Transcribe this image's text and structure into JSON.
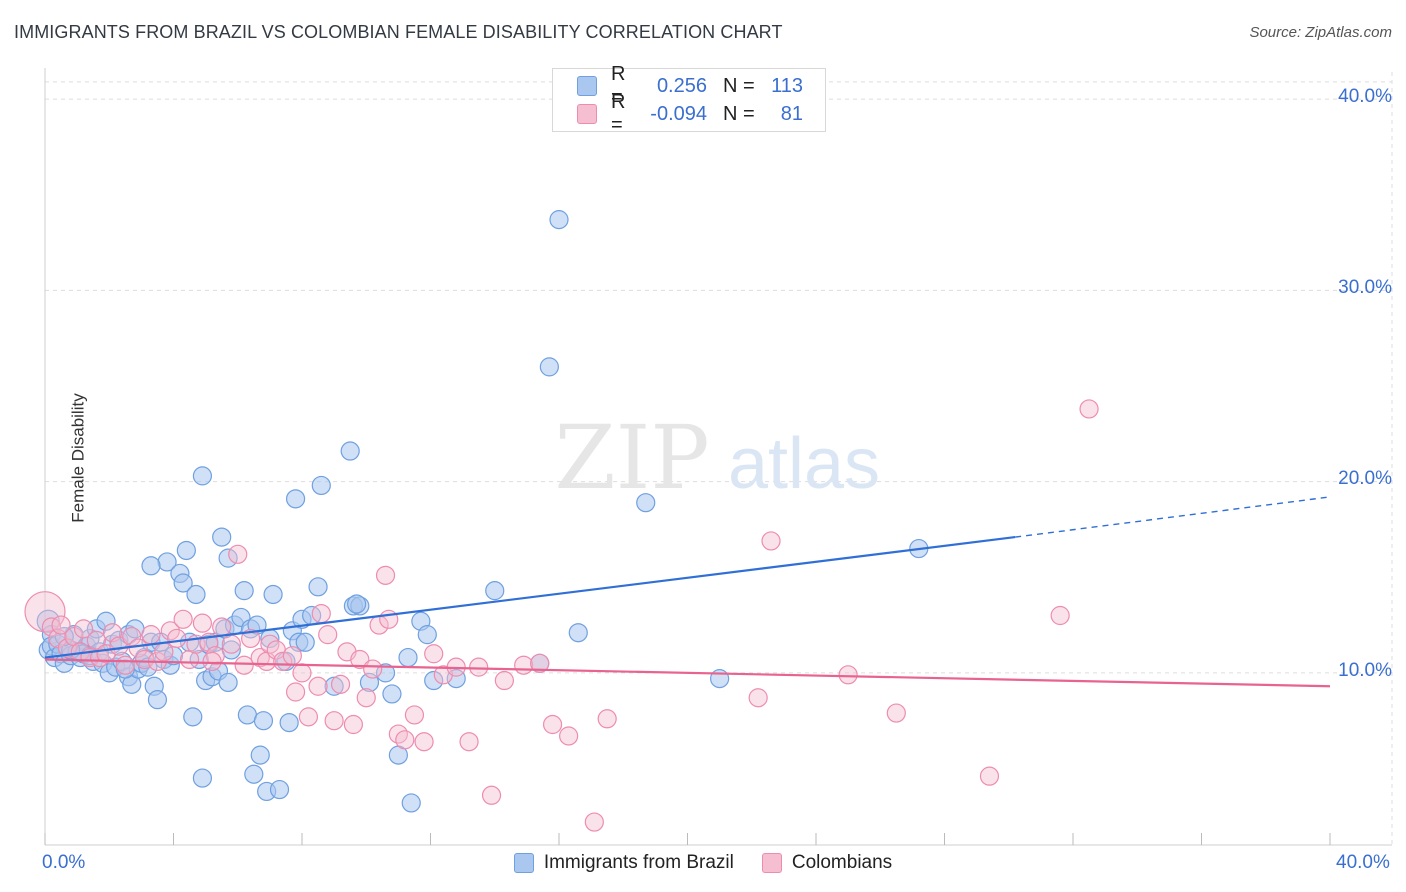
{
  "header": {
    "title": "IMMIGRANTS FROM BRAZIL VS COLOMBIAN FEMALE DISABILITY CORRELATION CHART",
    "source": "Source: ZipAtlas.com"
  },
  "watermark": {
    "zip": "ZIP",
    "atlas": "atlas"
  },
  "legend_stats": [
    {
      "r_label": "R =",
      "r_value": "0.256",
      "n_label": "N =",
      "n_value": "113",
      "color": "#6fa0e0"
    },
    {
      "r_label": "R =",
      "r_value": "-0.094",
      "n_label": "N =",
      "n_value": "81",
      "color": "#f08cb0"
    }
  ],
  "colors": {
    "blue_fill": "#a9c7ef",
    "blue_stroke": "#6fa0e0",
    "blue_line": "#2f6fd6",
    "pink_fill": "#f5bfd1",
    "pink_stroke": "#ee8cb0",
    "pink_line": "#e8638f",
    "grid": "#dddddd",
    "axis_text": "#3a6fd0"
  },
  "chart_data": {
    "type": "scatter",
    "title": "IMMIGRANTS FROM BRAZIL VS COLOMBIAN FEMALE DISABILITY CORRELATION CHART",
    "xlabel": "",
    "ylabel": "Female Disability",
    "xlim": [
      0,
      40
    ],
    "ylim": [
      1,
      41
    ],
    "x_tick_labels": [
      "0.0%",
      "40.0%"
    ],
    "y_ticks": [
      10,
      20,
      30,
      40
    ],
    "y_tick_labels": [
      "10.0%",
      "20.0%",
      "30.0%",
      "40.0%"
    ],
    "grid": true,
    "legend": "bottom-center",
    "series": [
      {
        "name": "Immigrants from Brazil",
        "color": "#6fa0e0",
        "trend": {
          "x0": 0,
          "y0": 10.8,
          "x1": 30.2,
          "y1": 17.1,
          "dashed_to_x": 40,
          "dashed_to_y": 19.2
        },
        "points": [
          [
            0.1,
            12.7
          ],
          [
            0.1,
            11.2
          ],
          [
            0.2,
            12.0
          ],
          [
            0.2,
            11.4
          ],
          [
            0.3,
            10.8
          ],
          [
            0.4,
            11.5
          ],
          [
            0.5,
            11.0
          ],
          [
            0.6,
            10.5
          ],
          [
            0.7,
            11.3
          ],
          [
            0.8,
            10.9
          ],
          [
            0.9,
            12.0
          ],
          [
            1.0,
            11.1
          ],
          [
            1.1,
            10.8
          ],
          [
            1.2,
            11.0
          ],
          [
            1.3,
            11.4
          ],
          [
            1.4,
            11.8
          ],
          [
            1.5,
            10.6
          ],
          [
            1.6,
            12.3
          ],
          [
            1.7,
            11.1
          ],
          [
            1.8,
            10.5
          ],
          [
            1.9,
            12.7
          ],
          [
            2.0,
            10.0
          ],
          [
            2.1,
            11.5
          ],
          [
            2.2,
            10.3
          ],
          [
            2.3,
            11.7
          ],
          [
            2.4,
            10.6
          ],
          [
            2.6,
            9.8
          ],
          [
            2.6,
            12.0
          ],
          [
            2.7,
            9.4
          ],
          [
            2.8,
            12.3
          ],
          [
            2.9,
            10.2
          ],
          [
            3.0,
            10.5
          ],
          [
            3.1,
            10.8
          ],
          [
            3.2,
            10.3
          ],
          [
            3.3,
            11.6
          ],
          [
            3.4,
            9.3
          ],
          [
            3.5,
            8.6
          ],
          [
            3.6,
            11.6
          ],
          [
            3.7,
            10.7
          ],
          [
            3.8,
            15.8
          ],
          [
            3.9,
            10.4
          ],
          [
            4.0,
            10.9
          ],
          [
            4.2,
            15.2
          ],
          [
            4.3,
            14.7
          ],
          [
            4.4,
            16.4
          ],
          [
            4.5,
            11.6
          ],
          [
            4.6,
            7.7
          ],
          [
            4.7,
            14.1
          ],
          [
            4.8,
            10.7
          ],
          [
            4.9,
            4.5
          ],
          [
            4.9,
            20.3
          ],
          [
            5.0,
            9.6
          ],
          [
            5.1,
            11.5
          ],
          [
            5.2,
            9.8
          ],
          [
            5.3,
            11.6
          ],
          [
            5.4,
            10.1
          ],
          [
            5.5,
            17.1
          ],
          [
            5.6,
            12.3
          ],
          [
            5.7,
            16.0
          ],
          [
            5.8,
            11.2
          ],
          [
            5.9,
            12.5
          ],
          [
            6.1,
            12.9
          ],
          [
            6.2,
            14.3
          ],
          [
            6.3,
            7.8
          ],
          [
            6.4,
            12.3
          ],
          [
            6.5,
            4.7
          ],
          [
            6.6,
            12.5
          ],
          [
            6.7,
            5.7
          ],
          [
            6.8,
            7.5
          ],
          [
            6.9,
            3.8
          ],
          [
            7.0,
            11.8
          ],
          [
            7.1,
            14.1
          ],
          [
            7.3,
            3.9
          ],
          [
            7.5,
            10.6
          ],
          [
            7.6,
            7.4
          ],
          [
            7.7,
            12.2
          ],
          [
            7.8,
            19.1
          ],
          [
            7.9,
            11.6
          ],
          [
            8.0,
            12.8
          ],
          [
            8.1,
            11.6
          ],
          [
            8.3,
            13.0
          ],
          [
            8.5,
            14.5
          ],
          [
            8.6,
            19.8
          ],
          [
            9.0,
            9.3
          ],
          [
            9.5,
            21.6
          ],
          [
            9.6,
            13.5
          ],
          [
            9.8,
            13.5
          ],
          [
            10.1,
            9.5
          ],
          [
            10.6,
            10.0
          ],
          [
            10.8,
            8.9
          ],
          [
            11.0,
            5.7
          ],
          [
            11.3,
            10.8
          ],
          [
            11.4,
            3.2
          ],
          [
            11.7,
            12.7
          ],
          [
            11.9,
            12.0
          ],
          [
            12.1,
            9.6
          ],
          [
            12.8,
            9.7
          ],
          [
            14.0,
            14.3
          ],
          [
            15.4,
            10.5
          ],
          [
            15.7,
            26.0
          ],
          [
            16.0,
            33.7
          ],
          [
            16.6,
            12.1
          ],
          [
            18.7,
            18.9
          ],
          [
            21.0,
            9.7
          ],
          [
            27.2,
            16.5
          ],
          [
            1.2,
            11.0
          ],
          [
            2.5,
            10.2
          ],
          [
            3.3,
            15.6
          ],
          [
            0.8,
            11.2
          ],
          [
            1.4,
            10.9
          ],
          [
            0.6,
            11.9
          ],
          [
            5.7,
            9.5
          ],
          [
            9.7,
            13.6
          ]
        ]
      },
      {
        "name": "Colombians",
        "color": "#ee8cb0",
        "trend": {
          "x0": 0,
          "y0": 10.7,
          "x1": 40,
          "y1": 9.3
        },
        "points": [
          [
            0.0,
            13.2
          ],
          [
            0.2,
            12.4
          ],
          [
            0.4,
            11.8
          ],
          [
            0.5,
            12.5
          ],
          [
            0.7,
            11.3
          ],
          [
            0.9,
            11.9
          ],
          [
            1.1,
            11.1
          ],
          [
            1.2,
            12.3
          ],
          [
            1.4,
            10.8
          ],
          [
            1.6,
            11.7
          ],
          [
            1.7,
            10.8
          ],
          [
            1.9,
            11.0
          ],
          [
            2.1,
            12.1
          ],
          [
            2.3,
            11.4
          ],
          [
            2.5,
            10.4
          ],
          [
            2.7,
            11.9
          ],
          [
            2.9,
            11.3
          ],
          [
            3.1,
            10.7
          ],
          [
            3.3,
            12.0
          ],
          [
            3.5,
            10.6
          ],
          [
            3.7,
            11.1
          ],
          [
            3.9,
            12.2
          ],
          [
            4.1,
            11.8
          ],
          [
            4.3,
            12.8
          ],
          [
            4.5,
            10.7
          ],
          [
            4.7,
            11.5
          ],
          [
            4.9,
            12.6
          ],
          [
            5.1,
            11.6
          ],
          [
            5.3,
            10.9
          ],
          [
            5.5,
            12.4
          ],
          [
            5.8,
            11.5
          ],
          [
            6.0,
            16.2
          ],
          [
            6.2,
            10.4
          ],
          [
            6.4,
            11.8
          ],
          [
            6.7,
            10.8
          ],
          [
            6.9,
            10.6
          ],
          [
            7.0,
            11.5
          ],
          [
            7.2,
            11.2
          ],
          [
            7.4,
            10.6
          ],
          [
            7.7,
            10.9
          ],
          [
            7.8,
            9.0
          ],
          [
            8.0,
            10.0
          ],
          [
            8.2,
            7.7
          ],
          [
            8.5,
            9.3
          ],
          [
            8.8,
            12.0
          ],
          [
            9.0,
            7.5
          ],
          [
            9.2,
            9.4
          ],
          [
            9.4,
            11.1
          ],
          [
            9.6,
            7.3
          ],
          [
            9.8,
            10.7
          ],
          [
            10.0,
            8.7
          ],
          [
            10.2,
            10.2
          ],
          [
            10.4,
            12.5
          ],
          [
            10.7,
            12.8
          ],
          [
            11.0,
            6.8
          ],
          [
            11.2,
            6.5
          ],
          [
            11.5,
            7.8
          ],
          [
            11.8,
            6.4
          ],
          [
            12.1,
            11.0
          ],
          [
            12.4,
            9.9
          ],
          [
            12.8,
            10.3
          ],
          [
            13.2,
            6.4
          ],
          [
            13.5,
            10.3
          ],
          [
            13.9,
            3.6
          ],
          [
            14.3,
            9.6
          ],
          [
            14.9,
            10.4
          ],
          [
            15.4,
            10.5
          ],
          [
            15.8,
            7.3
          ],
          [
            16.3,
            6.7
          ],
          [
            17.1,
            2.2
          ],
          [
            17.5,
            7.6
          ],
          [
            22.2,
            8.7
          ],
          [
            22.6,
            16.9
          ],
          [
            25.0,
            9.9
          ],
          [
            26.5,
            7.9
          ],
          [
            29.4,
            4.6
          ],
          [
            31.6,
            13.0
          ],
          [
            32.5,
            23.8
          ],
          [
            10.6,
            15.1
          ],
          [
            8.6,
            13.1
          ],
          [
            5.2,
            10.6
          ]
        ]
      }
    ]
  }
}
